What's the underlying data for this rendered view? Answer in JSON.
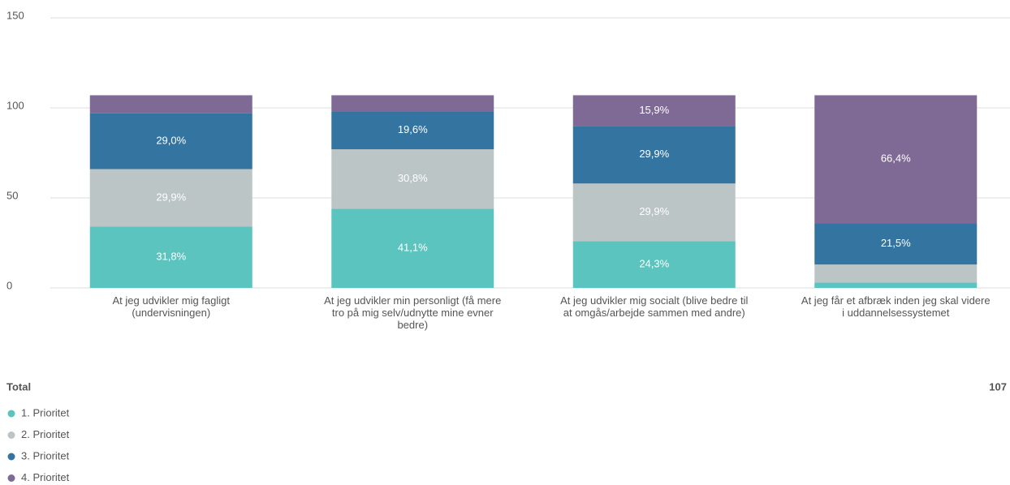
{
  "chart_data": {
    "type": "stacked_bar",
    "categories": [
      "At jeg udvikler mig fagligt (undervisningen)",
      "At jeg udvikler min personligt (få mere tro på mig selv/udnytte mine evner bedre)",
      "At jeg udvikler mig socialt (blive bedre til at omgås/arbejde sammen med andre)",
      "At jeg får et afbræk inden jeg skal videre i uddannelsessystemet"
    ],
    "series": [
      {
        "name": "1. Prioritet",
        "color": "#5bc4bf",
        "values": [
          34,
          44,
          26,
          3
        ],
        "value_labels": [
          "31,8%",
          "41,1%",
          "24,3%",
          null
        ]
      },
      {
        "name": "2. Prioritet",
        "color": "#bcc5c6",
        "values": [
          32,
          33,
          32,
          10
        ],
        "value_labels": [
          "29,9%",
          "30,8%",
          "29,9%",
          null
        ]
      },
      {
        "name": "3. Prioritet",
        "color": "#3374a0",
        "values": [
          31,
          21,
          32,
          23
        ],
        "value_labels": [
          "29,0%",
          "19,6%",
          "29,9%",
          "21,5%"
        ]
      },
      {
        "name": "4. Prioritet",
        "color": "#7f6a96",
        "values": [
          10,
          9,
          17,
          71
        ],
        "value_labels": [
          null,
          null,
          "15,9%",
          "66,4%"
        ]
      }
    ],
    "ylim": [
      0,
      150
    ],
    "yticks": [
      0,
      50,
      100,
      150
    ],
    "grid": true,
    "total_label": "Total",
    "total": 107
  }
}
